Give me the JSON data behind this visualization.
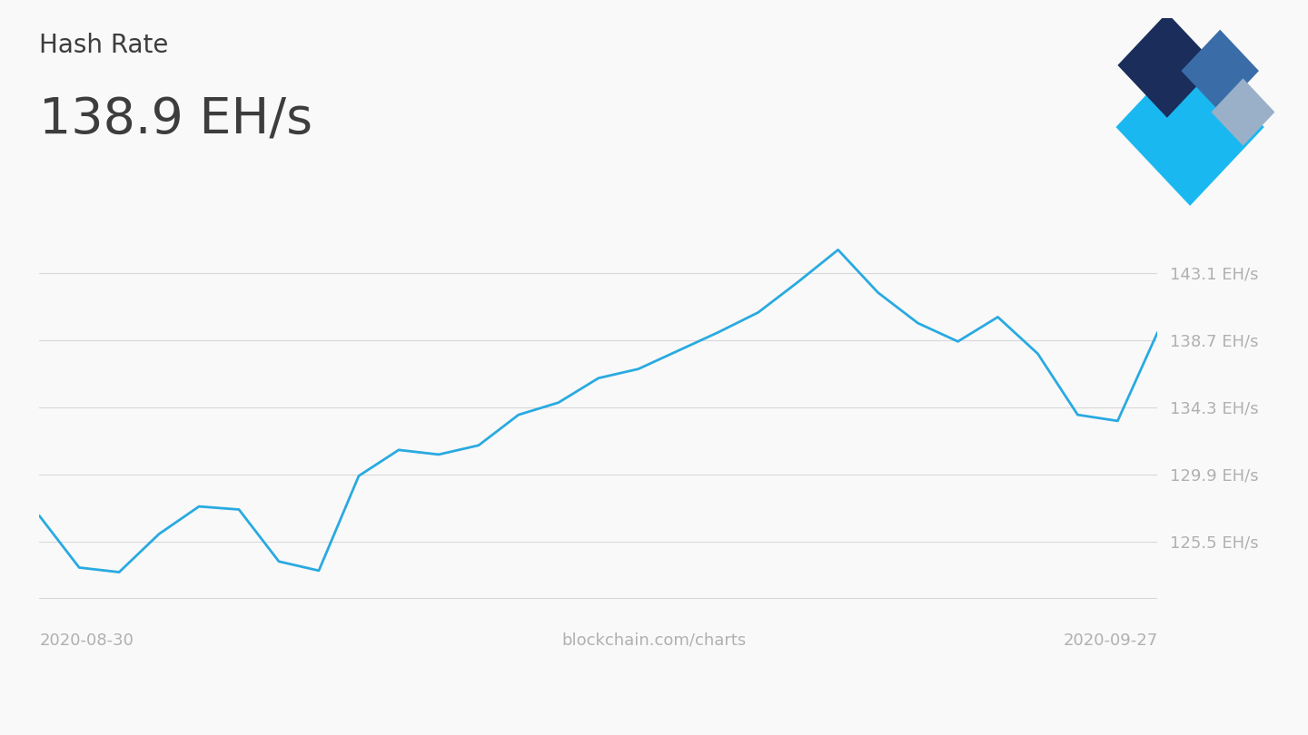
{
  "title_label": "Hash Rate",
  "value_label": "138.9 EH/s",
  "x_left_label": "2020-08-30",
  "x_center_label": "blockchain.com/charts",
  "x_right_label": "2020-09-27",
  "y_ticks": [
    125.5,
    129.9,
    134.3,
    138.7,
    143.1
  ],
  "y_tick_labels": [
    "125.5 EH/s",
    "129.9 EH/s",
    "134.3 EH/s",
    "138.7 EH/s",
    "143.1 EH/s"
  ],
  "ylim": [
    121.5,
    147.0
  ],
  "line_color": "#29aae1",
  "line_width": 2.0,
  "grid_color": "#d8d8d8",
  "background_color": "#f9f9f9",
  "text_color_dark": "#3d3d3d",
  "text_color_light": "#b0b0b0",
  "x_data": [
    0,
    1,
    2,
    3,
    4,
    5,
    6,
    7,
    8,
    9,
    10,
    11,
    12,
    13,
    14,
    15,
    16,
    17,
    18,
    19,
    20,
    21,
    22,
    23,
    24,
    25,
    26,
    27,
    28
  ],
  "y_data": [
    127.2,
    123.8,
    123.5,
    126.0,
    127.8,
    127.6,
    124.2,
    123.6,
    129.8,
    131.5,
    131.2,
    131.8,
    133.8,
    134.6,
    136.2,
    136.8,
    138.0,
    139.2,
    140.5,
    142.5,
    144.6,
    141.8,
    139.8,
    138.6,
    140.2,
    137.8,
    133.8,
    133.4,
    139.2
  ],
  "logo_dark_navy": "#1b2d5b",
  "logo_medium_blue": "#3a6da8",
  "logo_light_gray": "#9ab0c8",
  "logo_cyan": "#1ab8f0"
}
